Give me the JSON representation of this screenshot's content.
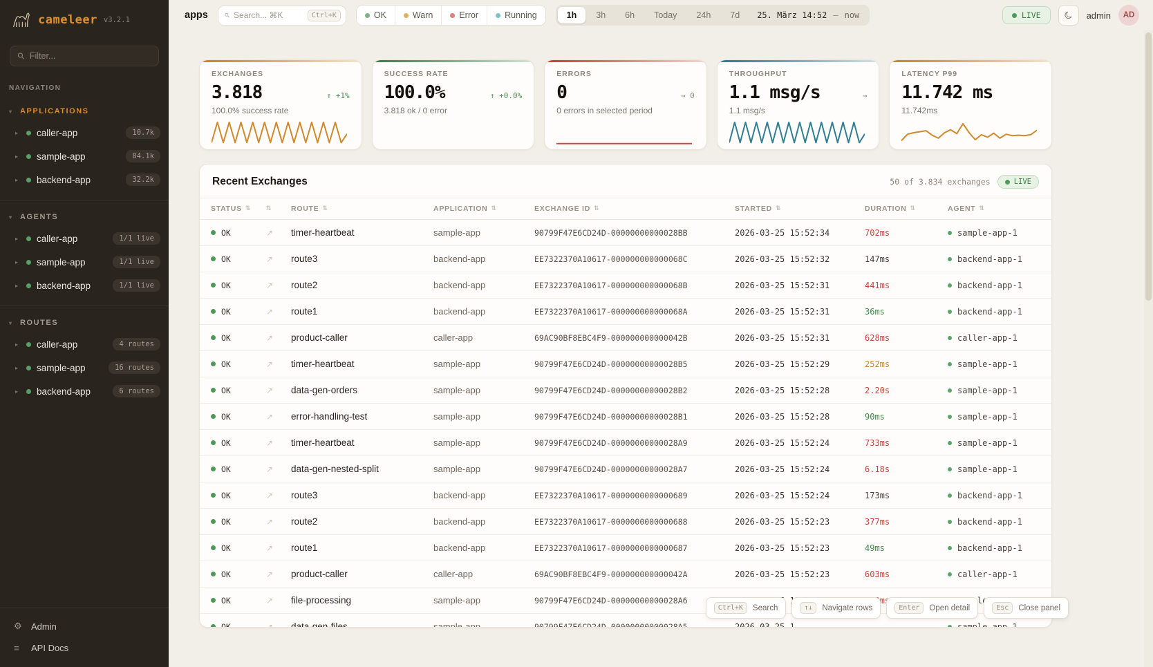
{
  "brand": {
    "name": "cameleer",
    "version": "v3.2.1"
  },
  "sidebar": {
    "filter_placeholder": "Filter...",
    "nav_label": "NAVIGATION",
    "sections": [
      {
        "label": "APPLICATIONS",
        "accent": true,
        "items": [
          {
            "name": "caller-app",
            "badge": "10.7k"
          },
          {
            "name": "sample-app",
            "badge": "84.1k"
          },
          {
            "name": "backend-app",
            "badge": "32.2k"
          }
        ]
      },
      {
        "label": "AGENTS",
        "accent": false,
        "items": [
          {
            "name": "caller-app",
            "badge": "1/1 live"
          },
          {
            "name": "sample-app",
            "badge": "1/1 live"
          },
          {
            "name": "backend-app",
            "badge": "1/1 live"
          }
        ]
      },
      {
        "label": "ROUTES",
        "accent": false,
        "items": [
          {
            "name": "caller-app",
            "badge": "4 routes"
          },
          {
            "name": "sample-app",
            "badge": "16 routes"
          },
          {
            "name": "backend-app",
            "badge": "6 routes"
          }
        ]
      }
    ],
    "footer": [
      {
        "label": "Admin",
        "icon": "gear-icon",
        "glyph": "⚙"
      },
      {
        "label": "API Docs",
        "icon": "docs-icon",
        "glyph": "≡"
      }
    ]
  },
  "topbar": {
    "page": "apps",
    "search_placeholder": "Search... ⌘K",
    "search_kbd": "Ctrl+K",
    "status_filters": [
      {
        "label": "OK",
        "color": "#7cb387"
      },
      {
        "label": "Warn",
        "color": "#ddb06a"
      },
      {
        "label": "Error",
        "color": "#df8078"
      },
      {
        "label": "Running",
        "color": "#7fc0cb"
      }
    ],
    "ranges": [
      "1h",
      "3h",
      "6h",
      "Today",
      "24h",
      "7d"
    ],
    "active_range": "1h",
    "date_label": "25. März 14:52",
    "date_sep": "—",
    "date_now": "now",
    "live_label": "LIVE",
    "user": "admin",
    "avatar": "AD"
  },
  "cards": [
    {
      "title": "EXCHANGES",
      "value": "3.818",
      "delta": "↑ +1%",
      "delta_color": "green",
      "sub": "100.0% success rate",
      "accent": "#c8801f",
      "spark_color": "#d0882a",
      "spark": [
        90,
        8,
        90,
        8,
        90,
        8,
        90,
        8,
        90,
        8,
        90,
        8,
        90,
        8,
        90,
        8,
        90,
        8,
        90,
        8,
        90,
        8,
        90,
        55
      ]
    },
    {
      "title": "SUCCESS RATE",
      "value": "100.0%",
      "delta": "↑ +0.0%",
      "delta_color": "green",
      "sub": "3.818 ok / 0 error",
      "accent": "#2f7d46",
      "spark_color": "#2f7d46",
      "spark": []
    },
    {
      "title": "ERRORS",
      "value": "0",
      "delta": "→ 0",
      "delta_color": "gray",
      "sub": "0 errors in selected period",
      "accent": "#c23b2e",
      "spark_color": "#cc4a3c",
      "spark": [
        94,
        94
      ]
    },
    {
      "title": "THROUGHPUT",
      "value": "1.1 msg/s",
      "delta": "→",
      "delta_color": "gray",
      "sub": "1.1 msg/s",
      "accent": "#25788a",
      "spark_color": "#2e7f91",
      "spark": [
        90,
        8,
        90,
        8,
        90,
        8,
        90,
        8,
        90,
        8,
        90,
        8,
        90,
        8,
        90,
        8,
        90,
        8,
        90,
        8,
        90,
        8,
        90,
        8,
        90,
        55
      ]
    },
    {
      "title": "LATENCY P99",
      "value": "11.742 ms",
      "delta": "",
      "delta_color": "gray",
      "sub": "11.742ms",
      "accent": "#c8801f",
      "spark_color": "#d0882a",
      "spark": [
        82,
        56,
        50,
        46,
        42,
        60,
        72,
        50,
        38,
        54,
        14,
        50,
        78,
        58,
        68,
        52,
        72,
        56,
        62,
        60,
        62,
        58,
        40
      ]
    }
  ],
  "table": {
    "title": "Recent Exchanges",
    "count_label": "50 of 3.834 exchanges",
    "live_label": "LIVE",
    "columns": [
      "STATUS",
      "",
      "ROUTE",
      "APPLICATION",
      "EXCHANGE ID",
      "STARTED",
      "DURATION",
      "AGENT"
    ],
    "rows": [
      {
        "status": "OK",
        "route": "timer-heartbeat",
        "app": "sample-app",
        "id": "90799F47E6CD24D-00000000000028BB",
        "started": "2026-03-25 15:52:34",
        "duration": "702ms",
        "duration_color": "red",
        "agent": "sample-app-1"
      },
      {
        "status": "OK",
        "route": "route3",
        "app": "backend-app",
        "id": "EE7322370A10617-000000000000068C",
        "started": "2026-03-25 15:52:32",
        "duration": "147ms",
        "duration_color": "neutral",
        "agent": "backend-app-1"
      },
      {
        "status": "OK",
        "route": "route2",
        "app": "backend-app",
        "id": "EE7322370A10617-000000000000068B",
        "started": "2026-03-25 15:52:31",
        "duration": "441ms",
        "duration_color": "red",
        "agent": "backend-app-1"
      },
      {
        "status": "OK",
        "route": "route1",
        "app": "backend-app",
        "id": "EE7322370A10617-000000000000068A",
        "started": "2026-03-25 15:52:31",
        "duration": "36ms",
        "duration_color": "green",
        "agent": "backend-app-1"
      },
      {
        "status": "OK",
        "route": "product-caller",
        "app": "caller-app",
        "id": "69AC90BF8EBC4F9-000000000000042B",
        "started": "2026-03-25 15:52:31",
        "duration": "628ms",
        "duration_color": "red",
        "agent": "caller-app-1"
      },
      {
        "status": "OK",
        "route": "timer-heartbeat",
        "app": "sample-app",
        "id": "90799F47E6CD24D-00000000000028B5",
        "started": "2026-03-25 15:52:29",
        "duration": "252ms",
        "duration_color": "orange",
        "agent": "sample-app-1"
      },
      {
        "status": "OK",
        "route": "data-gen-orders",
        "app": "sample-app",
        "id": "90799F47E6CD24D-00000000000028B2",
        "started": "2026-03-25 15:52:28",
        "duration": "2.20s",
        "duration_color": "red",
        "agent": "sample-app-1"
      },
      {
        "status": "OK",
        "route": "error-handling-test",
        "app": "sample-app",
        "id": "90799F47E6CD24D-00000000000028B1",
        "started": "2026-03-25 15:52:28",
        "duration": "90ms",
        "duration_color": "green",
        "agent": "sample-app-1"
      },
      {
        "status": "OK",
        "route": "timer-heartbeat",
        "app": "sample-app",
        "id": "90799F47E6CD24D-00000000000028A9",
        "started": "2026-03-25 15:52:24",
        "duration": "733ms",
        "duration_color": "red",
        "agent": "sample-app-1"
      },
      {
        "status": "OK",
        "route": "data-gen-nested-split",
        "app": "sample-app",
        "id": "90799F47E6CD24D-00000000000028A7",
        "started": "2026-03-25 15:52:24",
        "duration": "6.18s",
        "duration_color": "red",
        "agent": "sample-app-1"
      },
      {
        "status": "OK",
        "route": "route3",
        "app": "backend-app",
        "id": "EE7322370A10617-0000000000000689",
        "started": "2026-03-25 15:52:24",
        "duration": "173ms",
        "duration_color": "neutral",
        "agent": "backend-app-1"
      },
      {
        "status": "OK",
        "route": "route2",
        "app": "backend-app",
        "id": "EE7322370A10617-0000000000000688",
        "started": "2026-03-25 15:52:23",
        "duration": "377ms",
        "duration_color": "red",
        "agent": "backend-app-1"
      },
      {
        "status": "OK",
        "route": "route1",
        "app": "backend-app",
        "id": "EE7322370A10617-0000000000000687",
        "started": "2026-03-25 15:52:23",
        "duration": "49ms",
        "duration_color": "green",
        "agent": "backend-app-1"
      },
      {
        "status": "OK",
        "route": "product-caller",
        "app": "caller-app",
        "id": "69AC90BF8EBC4F9-000000000000042A",
        "started": "2026-03-25 15:52:23",
        "duration": "603ms",
        "duration_color": "red",
        "agent": "caller-app-1"
      },
      {
        "status": "OK",
        "route": "file-processing",
        "app": "sample-app",
        "id": "90799F47E6CD24D-00000000000028A6",
        "started": "2026-03-25 15:52:21",
        "duration": "809ms",
        "duration_color": "red",
        "agent": "sample-app-1"
      },
      {
        "status": "OK",
        "route": "data-gen-files",
        "app": "sample-app",
        "id": "90799F47E6CD24D-00000000000028A5",
        "started": "2026-03-25 1",
        "duration": "",
        "duration_color": "neutral",
        "agent": "sample-app-1"
      }
    ]
  },
  "hints": [
    {
      "kbd": "Ctrl+K",
      "label": "Search"
    },
    {
      "kbd": "↑↓",
      "label": "Navigate rows"
    },
    {
      "kbd": "Enter",
      "label": "Open detail"
    },
    {
      "kbd": "Esc",
      "label": "Close panel"
    }
  ]
}
